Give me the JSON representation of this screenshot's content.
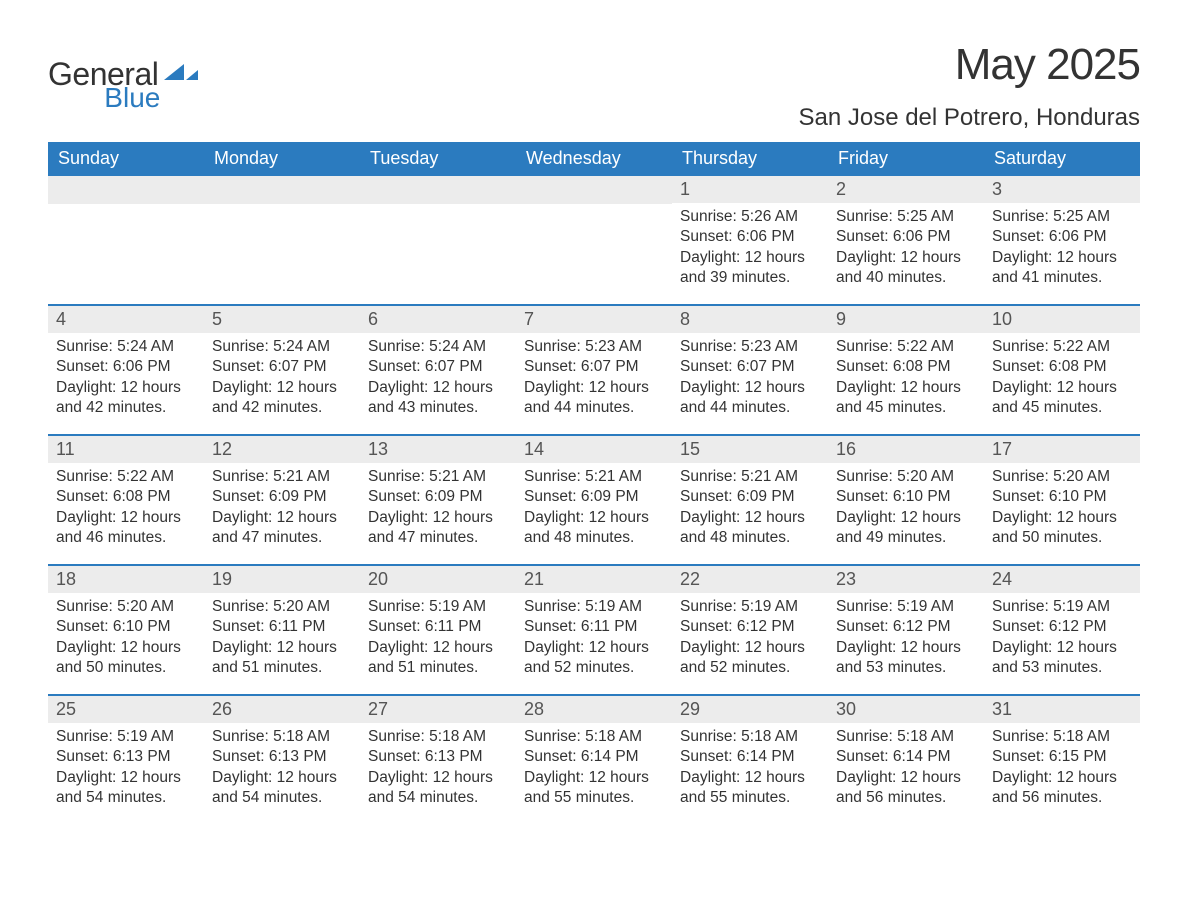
{
  "brand": {
    "name_part1": "General",
    "name_part2": "Blue",
    "color_text": "#333333",
    "color_accent": "#2b7bbf"
  },
  "header": {
    "month_title": "May 2025",
    "location": "San Jose del Potrero, Honduras"
  },
  "styling": {
    "header_bg": "#2b7bbf",
    "header_text": "#ffffff",
    "daynum_bg": "#ececec",
    "row_border": "#2b7bbf",
    "body_text": "#333333",
    "page_bg": "#ffffff"
  },
  "weekdays": [
    "Sunday",
    "Monday",
    "Tuesday",
    "Wednesday",
    "Thursday",
    "Friday",
    "Saturday"
  ],
  "weeks": [
    [
      {
        "day": "",
        "sunrise": "",
        "sunset": "",
        "daylight1": "",
        "daylight2": ""
      },
      {
        "day": "",
        "sunrise": "",
        "sunset": "",
        "daylight1": "",
        "daylight2": ""
      },
      {
        "day": "",
        "sunrise": "",
        "sunset": "",
        "daylight1": "",
        "daylight2": ""
      },
      {
        "day": "",
        "sunrise": "",
        "sunset": "",
        "daylight1": "",
        "daylight2": ""
      },
      {
        "day": "1",
        "sunrise": "Sunrise: 5:26 AM",
        "sunset": "Sunset: 6:06 PM",
        "daylight1": "Daylight: 12 hours",
        "daylight2": "and 39 minutes."
      },
      {
        "day": "2",
        "sunrise": "Sunrise: 5:25 AM",
        "sunset": "Sunset: 6:06 PM",
        "daylight1": "Daylight: 12 hours",
        "daylight2": "and 40 minutes."
      },
      {
        "day": "3",
        "sunrise": "Sunrise: 5:25 AM",
        "sunset": "Sunset: 6:06 PM",
        "daylight1": "Daylight: 12 hours",
        "daylight2": "and 41 minutes."
      }
    ],
    [
      {
        "day": "4",
        "sunrise": "Sunrise: 5:24 AM",
        "sunset": "Sunset: 6:06 PM",
        "daylight1": "Daylight: 12 hours",
        "daylight2": "and 42 minutes."
      },
      {
        "day": "5",
        "sunrise": "Sunrise: 5:24 AM",
        "sunset": "Sunset: 6:07 PM",
        "daylight1": "Daylight: 12 hours",
        "daylight2": "and 42 minutes."
      },
      {
        "day": "6",
        "sunrise": "Sunrise: 5:24 AM",
        "sunset": "Sunset: 6:07 PM",
        "daylight1": "Daylight: 12 hours",
        "daylight2": "and 43 minutes."
      },
      {
        "day": "7",
        "sunrise": "Sunrise: 5:23 AM",
        "sunset": "Sunset: 6:07 PM",
        "daylight1": "Daylight: 12 hours",
        "daylight2": "and 44 minutes."
      },
      {
        "day": "8",
        "sunrise": "Sunrise: 5:23 AM",
        "sunset": "Sunset: 6:07 PM",
        "daylight1": "Daylight: 12 hours",
        "daylight2": "and 44 minutes."
      },
      {
        "day": "9",
        "sunrise": "Sunrise: 5:22 AM",
        "sunset": "Sunset: 6:08 PM",
        "daylight1": "Daylight: 12 hours",
        "daylight2": "and 45 minutes."
      },
      {
        "day": "10",
        "sunrise": "Sunrise: 5:22 AM",
        "sunset": "Sunset: 6:08 PM",
        "daylight1": "Daylight: 12 hours",
        "daylight2": "and 45 minutes."
      }
    ],
    [
      {
        "day": "11",
        "sunrise": "Sunrise: 5:22 AM",
        "sunset": "Sunset: 6:08 PM",
        "daylight1": "Daylight: 12 hours",
        "daylight2": "and 46 minutes."
      },
      {
        "day": "12",
        "sunrise": "Sunrise: 5:21 AM",
        "sunset": "Sunset: 6:09 PM",
        "daylight1": "Daylight: 12 hours",
        "daylight2": "and 47 minutes."
      },
      {
        "day": "13",
        "sunrise": "Sunrise: 5:21 AM",
        "sunset": "Sunset: 6:09 PM",
        "daylight1": "Daylight: 12 hours",
        "daylight2": "and 47 minutes."
      },
      {
        "day": "14",
        "sunrise": "Sunrise: 5:21 AM",
        "sunset": "Sunset: 6:09 PM",
        "daylight1": "Daylight: 12 hours",
        "daylight2": "and 48 minutes."
      },
      {
        "day": "15",
        "sunrise": "Sunrise: 5:21 AM",
        "sunset": "Sunset: 6:09 PM",
        "daylight1": "Daylight: 12 hours",
        "daylight2": "and 48 minutes."
      },
      {
        "day": "16",
        "sunrise": "Sunrise: 5:20 AM",
        "sunset": "Sunset: 6:10 PM",
        "daylight1": "Daylight: 12 hours",
        "daylight2": "and 49 minutes."
      },
      {
        "day": "17",
        "sunrise": "Sunrise: 5:20 AM",
        "sunset": "Sunset: 6:10 PM",
        "daylight1": "Daylight: 12 hours",
        "daylight2": "and 50 minutes."
      }
    ],
    [
      {
        "day": "18",
        "sunrise": "Sunrise: 5:20 AM",
        "sunset": "Sunset: 6:10 PM",
        "daylight1": "Daylight: 12 hours",
        "daylight2": "and 50 minutes."
      },
      {
        "day": "19",
        "sunrise": "Sunrise: 5:20 AM",
        "sunset": "Sunset: 6:11 PM",
        "daylight1": "Daylight: 12 hours",
        "daylight2": "and 51 minutes."
      },
      {
        "day": "20",
        "sunrise": "Sunrise: 5:19 AM",
        "sunset": "Sunset: 6:11 PM",
        "daylight1": "Daylight: 12 hours",
        "daylight2": "and 51 minutes."
      },
      {
        "day": "21",
        "sunrise": "Sunrise: 5:19 AM",
        "sunset": "Sunset: 6:11 PM",
        "daylight1": "Daylight: 12 hours",
        "daylight2": "and 52 minutes."
      },
      {
        "day": "22",
        "sunrise": "Sunrise: 5:19 AM",
        "sunset": "Sunset: 6:12 PM",
        "daylight1": "Daylight: 12 hours",
        "daylight2": "and 52 minutes."
      },
      {
        "day": "23",
        "sunrise": "Sunrise: 5:19 AM",
        "sunset": "Sunset: 6:12 PM",
        "daylight1": "Daylight: 12 hours",
        "daylight2": "and 53 minutes."
      },
      {
        "day": "24",
        "sunrise": "Sunrise: 5:19 AM",
        "sunset": "Sunset: 6:12 PM",
        "daylight1": "Daylight: 12 hours",
        "daylight2": "and 53 minutes."
      }
    ],
    [
      {
        "day": "25",
        "sunrise": "Sunrise: 5:19 AM",
        "sunset": "Sunset: 6:13 PM",
        "daylight1": "Daylight: 12 hours",
        "daylight2": "and 54 minutes."
      },
      {
        "day": "26",
        "sunrise": "Sunrise: 5:18 AM",
        "sunset": "Sunset: 6:13 PM",
        "daylight1": "Daylight: 12 hours",
        "daylight2": "and 54 minutes."
      },
      {
        "day": "27",
        "sunrise": "Sunrise: 5:18 AM",
        "sunset": "Sunset: 6:13 PM",
        "daylight1": "Daylight: 12 hours",
        "daylight2": "and 54 minutes."
      },
      {
        "day": "28",
        "sunrise": "Sunrise: 5:18 AM",
        "sunset": "Sunset: 6:14 PM",
        "daylight1": "Daylight: 12 hours",
        "daylight2": "and 55 minutes."
      },
      {
        "day": "29",
        "sunrise": "Sunrise: 5:18 AM",
        "sunset": "Sunset: 6:14 PM",
        "daylight1": "Daylight: 12 hours",
        "daylight2": "and 55 minutes."
      },
      {
        "day": "30",
        "sunrise": "Sunrise: 5:18 AM",
        "sunset": "Sunset: 6:14 PM",
        "daylight1": "Daylight: 12 hours",
        "daylight2": "and 56 minutes."
      },
      {
        "day": "31",
        "sunrise": "Sunrise: 5:18 AM",
        "sunset": "Sunset: 6:15 PM",
        "daylight1": "Daylight: 12 hours",
        "daylight2": "and 56 minutes."
      }
    ]
  ]
}
